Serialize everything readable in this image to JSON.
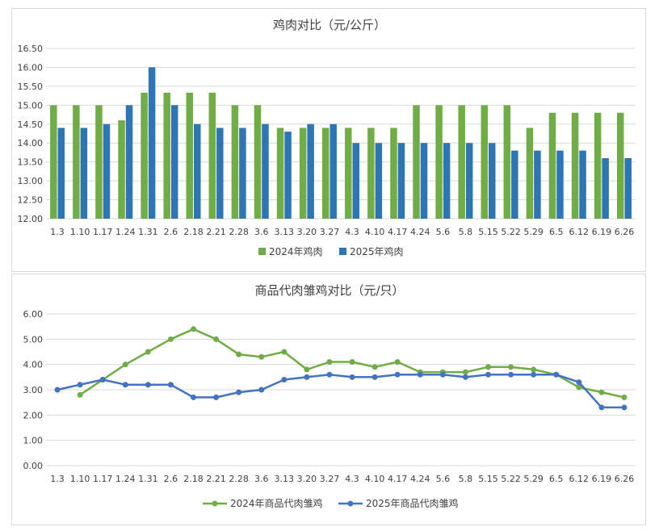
{
  "colors": {
    "green": "#70ad47",
    "blue": "#2e75b6",
    "grid": "#d9d9d9",
    "text": "#404040"
  },
  "chart_data": [
    {
      "type": "bar",
      "title": "鸡肉对比（元/公斤）",
      "xlabel": "",
      "ylabel": "",
      "ylim": [
        12.0,
        16.5
      ],
      "ytick_step": 0.5,
      "yticks": [
        "12.00",
        "12.50",
        "13.00",
        "13.50",
        "14.00",
        "14.50",
        "15.00",
        "15.50",
        "16.00",
        "16.50"
      ],
      "grid": true,
      "legend_position": "bottom",
      "categories": [
        "1.3",
        "1.10",
        "1.17",
        "1.24",
        "1.31",
        "2.6",
        "2.18",
        "2.21",
        "2.28",
        "3.6",
        "3.13",
        "3.20",
        "3.27",
        "4.3",
        "4.10",
        "4.17",
        "4.24",
        "5.6",
        "5.8",
        "5.15",
        "5.22",
        "5.29",
        "6.5",
        "6.12",
        "6.19",
        "6.26"
      ],
      "series": [
        {
          "name": "2024年鸡肉",
          "color": "#70ad47",
          "values": [
            15.0,
            15.0,
            15.0,
            14.6,
            15.33,
            15.33,
            15.33,
            15.33,
            15.0,
            15.0,
            14.4,
            14.4,
            14.4,
            14.4,
            14.4,
            14.4,
            15.0,
            15.0,
            15.0,
            15.0,
            15.0,
            14.4,
            14.8,
            14.8,
            14.8,
            14.8
          ]
        },
        {
          "name": "2025年鸡肉",
          "color": "#2e75b6",
          "values": [
            14.4,
            14.4,
            14.5,
            15.0,
            16.0,
            15.0,
            14.5,
            14.4,
            14.4,
            14.5,
            14.3,
            14.5,
            14.5,
            14.0,
            14.0,
            14.0,
            14.0,
            14.0,
            14.0,
            14.0,
            13.8,
            13.8,
            13.8,
            13.8,
            13.6,
            13.6
          ]
        }
      ]
    },
    {
      "type": "line",
      "title": "商品代肉雏鸡对比（元/只）",
      "xlabel": "",
      "ylabel": "",
      "ylim": [
        0.0,
        6.0
      ],
      "ytick_step": 1.0,
      "yticks": [
        "0.00",
        "1.00",
        "2.00",
        "3.00",
        "4.00",
        "5.00",
        "6.00"
      ],
      "grid": true,
      "legend_position": "bottom",
      "categories": [
        "1.3",
        "1.10",
        "1.17",
        "1.24",
        "1.31",
        "2.6",
        "2.18",
        "2.21",
        "2.28",
        "3.6",
        "3.13",
        "3.20",
        "3.27",
        "4.3",
        "4.10",
        "4.17",
        "4.24",
        "5.6",
        "5.8",
        "5.15",
        "5.22",
        "5.29",
        "6.5",
        "6.12",
        "6.19",
        "6.26"
      ],
      "series": [
        {
          "name": "2024年商品代肉雏鸡",
          "color": "#70ad47",
          "values": [
            null,
            2.8,
            3.4,
            4.0,
            4.5,
            5.0,
            5.4,
            5.0,
            4.4,
            4.3,
            4.5,
            3.8,
            4.1,
            4.1,
            3.9,
            4.1,
            3.7,
            3.7,
            3.7,
            3.9,
            3.9,
            3.8,
            3.6,
            3.1,
            2.9,
            2.7
          ]
        },
        {
          "name": "2025年商品代肉雏鸡",
          "color": "#4472c4",
          "values": [
            3.0,
            3.2,
            3.4,
            3.2,
            3.2,
            3.2,
            2.7,
            2.7,
            2.9,
            3.0,
            3.4,
            3.5,
            3.6,
            3.5,
            3.5,
            3.6,
            3.6,
            3.6,
            3.5,
            3.6,
            3.6,
            3.6,
            3.6,
            3.3,
            2.3,
            2.3
          ]
        }
      ]
    }
  ]
}
